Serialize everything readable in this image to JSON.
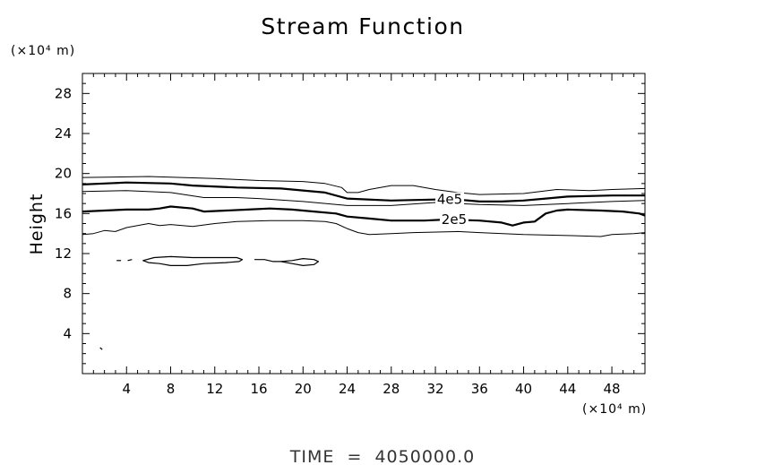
{
  "chart_data": {
    "type": "contour",
    "title": "Stream Function",
    "xlabel": "",
    "ylabel": "Height",
    "x_unit_label": "(×10⁴ m)",
    "y_unit_label": "(×10⁴ m)",
    "xlim": [
      0,
      51
    ],
    "ylim": [
      0,
      30
    ],
    "x_ticks": [
      4,
      8,
      12,
      16,
      20,
      24,
      28,
      32,
      36,
      40,
      44,
      48
    ],
    "y_ticks": [
      4,
      8,
      12,
      16,
      20,
      24,
      28
    ],
    "x_tick_labels": [
      "4",
      "8",
      "12",
      "16",
      "20",
      "24",
      "28",
      "32",
      "36",
      "40",
      "44",
      "48"
    ],
    "y_tick_labels": [
      "4",
      "8",
      "12",
      "16",
      "20",
      "24",
      "28"
    ],
    "grid": false,
    "footer": "TIME  =  4050000.0",
    "contour_labels": [
      {
        "text": "4e5",
        "x": 33.3,
        "y": 17.4
      },
      {
        "text": "2e5",
        "x": 33.7,
        "y": 15.4
      }
    ],
    "contours": [
      {
        "name": "outer-upper",
        "weight": "thin",
        "points": [
          [
            0,
            19.6
          ],
          [
            6,
            19.7
          ],
          [
            12,
            19.5
          ],
          [
            16,
            19.3
          ],
          [
            20,
            19.2
          ],
          [
            22,
            19.0
          ],
          [
            23.5,
            18.6
          ],
          [
            24,
            18.1
          ],
          [
            25,
            18.1
          ],
          [
            26,
            18.4
          ],
          [
            28,
            18.8
          ],
          [
            30,
            18.8
          ],
          [
            32,
            18.4
          ],
          [
            34,
            18.1
          ],
          [
            36,
            17.9
          ],
          [
            40,
            18.0
          ],
          [
            43,
            18.4
          ],
          [
            46,
            18.3
          ],
          [
            48,
            18.4
          ],
          [
            51,
            18.5
          ]
        ]
      },
      {
        "name": "4e5-contour",
        "weight": "thick",
        "points": [
          [
            0,
            18.9
          ],
          [
            4,
            19.1
          ],
          [
            8,
            19.0
          ],
          [
            10,
            18.8
          ],
          [
            14,
            18.6
          ],
          [
            18,
            18.5
          ],
          [
            22,
            18.1
          ],
          [
            24,
            17.5
          ],
          [
            28,
            17.3
          ],
          [
            32,
            17.4
          ],
          [
            34,
            17.4
          ],
          [
            36,
            17.2
          ],
          [
            38,
            17.2
          ],
          [
            40,
            17.3
          ],
          [
            42,
            17.5
          ],
          [
            44,
            17.7
          ],
          [
            48,
            17.8
          ],
          [
            51,
            17.8
          ]
        ]
      },
      {
        "name": "upper-middle",
        "weight": "thin",
        "points": [
          [
            0,
            18.2
          ],
          [
            4,
            18.3
          ],
          [
            8,
            18.1
          ],
          [
            11,
            17.6
          ],
          [
            14,
            17.6
          ],
          [
            16,
            17.5
          ],
          [
            20,
            17.2
          ],
          [
            24,
            16.8
          ],
          [
            28,
            16.8
          ],
          [
            32,
            17.1
          ],
          [
            36,
            16.9
          ],
          [
            40,
            16.8
          ],
          [
            44,
            17.0
          ],
          [
            48,
            17.2
          ],
          [
            51,
            17.3
          ]
        ]
      },
      {
        "name": "2e5-contour",
        "weight": "thick",
        "points": [
          [
            0,
            16.2
          ],
          [
            2,
            16.3
          ],
          [
            4,
            16.4
          ],
          [
            6,
            16.4
          ],
          [
            7,
            16.5
          ],
          [
            8,
            16.7
          ],
          [
            10,
            16.5
          ],
          [
            11,
            16.2
          ],
          [
            13,
            16.3
          ],
          [
            15,
            16.4
          ],
          [
            17,
            16.5
          ],
          [
            19,
            16.4
          ],
          [
            21,
            16.2
          ],
          [
            23,
            16.0
          ],
          [
            24,
            15.7
          ],
          [
            26,
            15.5
          ],
          [
            28,
            15.3
          ],
          [
            31,
            15.3
          ],
          [
            33,
            15.4
          ],
          [
            36,
            15.3
          ],
          [
            38,
            15.1
          ],
          [
            39,
            14.8
          ],
          [
            40,
            15.1
          ],
          [
            41,
            15.2
          ],
          [
            42,
            16.0
          ],
          [
            43,
            16.3
          ],
          [
            44,
            16.4
          ],
          [
            47,
            16.3
          ],
          [
            49,
            16.2
          ],
          [
            50.5,
            16.0
          ],
          [
            51,
            15.8
          ]
        ]
      },
      {
        "name": "outer-lower",
        "weight": "thin",
        "points": [
          [
            0,
            13.9
          ],
          [
            1,
            14.0
          ],
          [
            2,
            14.3
          ],
          [
            3,
            14.2
          ],
          [
            4,
            14.6
          ],
          [
            6,
            15.0
          ],
          [
            7,
            14.8
          ],
          [
            8,
            14.9
          ],
          [
            10,
            14.7
          ],
          [
            12,
            15.0
          ],
          [
            14,
            15.2
          ],
          [
            17,
            15.3
          ],
          [
            20,
            15.3
          ],
          [
            22,
            15.2
          ],
          [
            23,
            15.0
          ],
          [
            24,
            14.5
          ],
          [
            25,
            14.1
          ],
          [
            26,
            13.9
          ],
          [
            28,
            14.0
          ],
          [
            30,
            14.1
          ],
          [
            34,
            14.2
          ],
          [
            36,
            14.1
          ],
          [
            40,
            13.9
          ],
          [
            44,
            13.8
          ],
          [
            47,
            13.7
          ],
          [
            48,
            13.9
          ],
          [
            50,
            14.0
          ],
          [
            51,
            14.1
          ]
        ]
      }
    ],
    "closed_contours": [
      {
        "name": "cell-left",
        "points": [
          [
            5.5,
            11.3
          ],
          [
            6.5,
            11.6
          ],
          [
            8,
            11.7
          ],
          [
            10,
            11.6
          ],
          [
            12,
            11.6
          ],
          [
            14,
            11.6
          ],
          [
            14.5,
            11.4
          ],
          [
            14.2,
            11.2
          ],
          [
            13,
            11.1
          ],
          [
            11,
            11.0
          ],
          [
            9.5,
            10.8
          ],
          [
            8,
            10.8
          ],
          [
            7,
            11.0
          ],
          [
            6,
            11.1
          ]
        ]
      },
      {
        "name": "cell-right",
        "points": [
          [
            18,
            11.2
          ],
          [
            19,
            11.3
          ],
          [
            20,
            11.5
          ],
          [
            21,
            11.4
          ],
          [
            21.4,
            11.2
          ],
          [
            21,
            10.9
          ],
          [
            20,
            10.8
          ],
          [
            19,
            11.0
          ]
        ]
      }
    ],
    "fragments": [
      {
        "name": "dash-left",
        "points": [
          [
            3.1,
            11.3
          ],
          [
            3.5,
            11.3
          ]
        ]
      },
      {
        "name": "dash-left-2",
        "points": [
          [
            4.1,
            11.3
          ],
          [
            4.5,
            11.4
          ]
        ]
      },
      {
        "name": "dash-mid",
        "points": [
          [
            15.6,
            11.4
          ],
          [
            16.5,
            11.4
          ],
          [
            17.3,
            11.2
          ],
          [
            18,
            11.2
          ]
        ]
      },
      {
        "name": "speck",
        "points": [
          [
            1.6,
            2.6
          ],
          [
            1.8,
            2.4
          ]
        ]
      }
    ]
  }
}
